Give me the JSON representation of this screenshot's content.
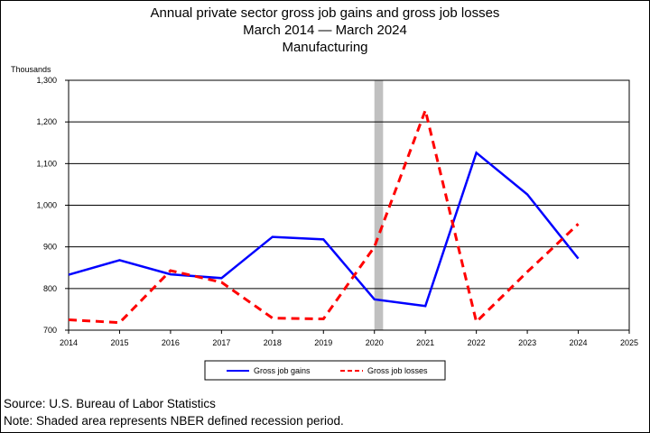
{
  "title_lines": [
    "Annual private sector gross job gains and gross job losses",
    "March 2014 — March 2024",
    "Manufacturing"
  ],
  "footer": {
    "source": "Source: U.S. Bureau of Labor Statistics",
    "note": "Note: Shaded area represents NBER defined recession period."
  },
  "chart_data": {
    "type": "line",
    "ylabel": "Thousands",
    "xlabel": "",
    "xlim": [
      2014,
      2025
    ],
    "ylim": [
      700,
      1300
    ],
    "x_ticks": [
      "2014",
      "2015",
      "2016",
      "2017",
      "2018",
      "2019",
      "2020",
      "2021",
      "2022",
      "2023",
      "2024",
      "2025"
    ],
    "y_ticks": [
      "700",
      "800",
      "900",
      "1,000",
      "1,100",
      "1,200",
      "1,300"
    ],
    "y_tick_values": [
      700,
      800,
      900,
      1000,
      1100,
      1200,
      1300
    ],
    "x": [
      2014,
      2015,
      2016,
      2017,
      2018,
      2019,
      2020,
      2021,
      2022,
      2023,
      2024
    ],
    "series": [
      {
        "name": "Gross job gains",
        "color": "#0000ff",
        "style": "solid",
        "values": [
          833,
          868,
          834,
          825,
          924,
          918,
          774,
          758,
          1126,
          1026,
          872
        ]
      },
      {
        "name": "Gross job losses",
        "color": "#ff0000",
        "style": "dashed",
        "values": [
          725,
          718,
          843,
          815,
          729,
          727,
          900,
          1228,
          720,
          840,
          955
        ]
      }
    ],
    "recession": {
      "start": 2020.0,
      "end": 2020.17,
      "color": "#c0c0c0"
    },
    "grid": true,
    "legend_position": "bottom"
  }
}
